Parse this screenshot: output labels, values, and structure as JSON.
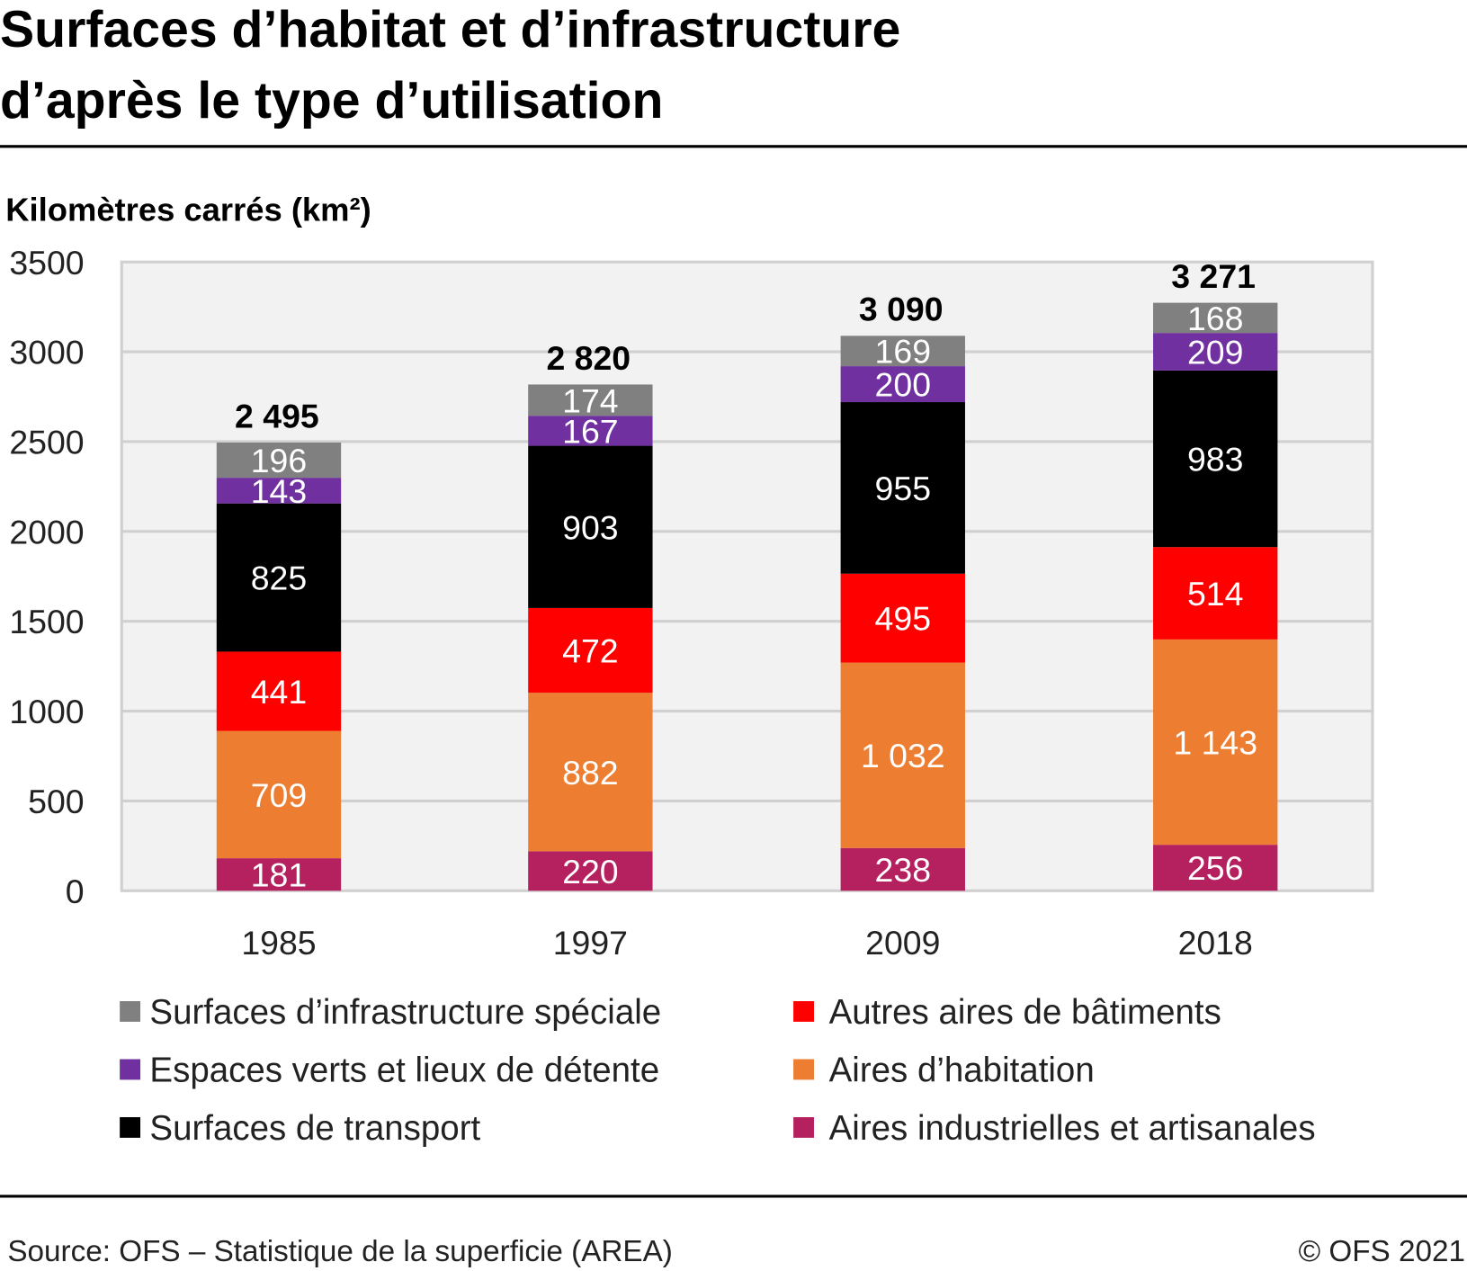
{
  "chart_data": {
    "type": "bar",
    "stacked": true,
    "title": "Surfaces d’habitat et d’infrastructure d’après le type d’utilisation",
    "title_lines": [
      "Surfaces d’habitat et d’infrastructure",
      "d’après le type d’utilisation"
    ],
    "ylabel": "Kilomètres carrés (km²)",
    "ylim": [
      0,
      3500
    ],
    "yticks": [
      "0",
      "500",
      "1000",
      "1500",
      "2000",
      "2500",
      "3000",
      "3500"
    ],
    "grid": true,
    "categories": [
      "1985",
      "1997",
      "2009",
      "2018"
    ],
    "totals": [
      "2 495",
      "2 820",
      "3 090",
      "3 271"
    ],
    "series": [
      {
        "name": "Aires industrielles et artisanales",
        "color": "#b5205e",
        "values": [
          181,
          220,
          238,
          256
        ],
        "labels": [
          "181",
          "220",
          "238",
          "256"
        ]
      },
      {
        "name": "Aires d’habitation",
        "color": "#ed7d31",
        "values": [
          709,
          882,
          1032,
          1143
        ],
        "labels": [
          "709",
          "882",
          "1 032",
          "1 143"
        ]
      },
      {
        "name": "Autres aires de bâtiments",
        "color": "#ff0000",
        "values": [
          441,
          472,
          495,
          514
        ],
        "labels": [
          "441",
          "472",
          "495",
          "514"
        ]
      },
      {
        "name": "Surfaces de transport",
        "color": "#000000",
        "values": [
          825,
          903,
          955,
          983
        ],
        "labels": [
          "825",
          "903",
          "955",
          "983"
        ]
      },
      {
        "name": "Espaces verts et lieux de détente",
        "color": "#7030a0",
        "values": [
          143,
          167,
          200,
          209
        ],
        "labels": [
          "143",
          "167",
          "200",
          "209"
        ]
      },
      {
        "name": "Surfaces d’infrastructure spéciale",
        "color": "#808080",
        "values": [
          196,
          174,
          169,
          168
        ],
        "labels": [
          "196",
          "174",
          "169",
          "168"
        ]
      }
    ],
    "legend": {
      "placement": "bottom",
      "order": [
        "Surfaces d’infrastructure spéciale",
        "Autres aires de bâtiments",
        "Espaces verts et lieux de détente",
        "Aires d’habitation",
        "Surfaces de transport",
        "Aires industrielles et artisanales"
      ]
    }
  },
  "footer": {
    "source": "Source: OFS – Statistique de la superficie (AREA)",
    "copyright": "© OFS 2021"
  }
}
